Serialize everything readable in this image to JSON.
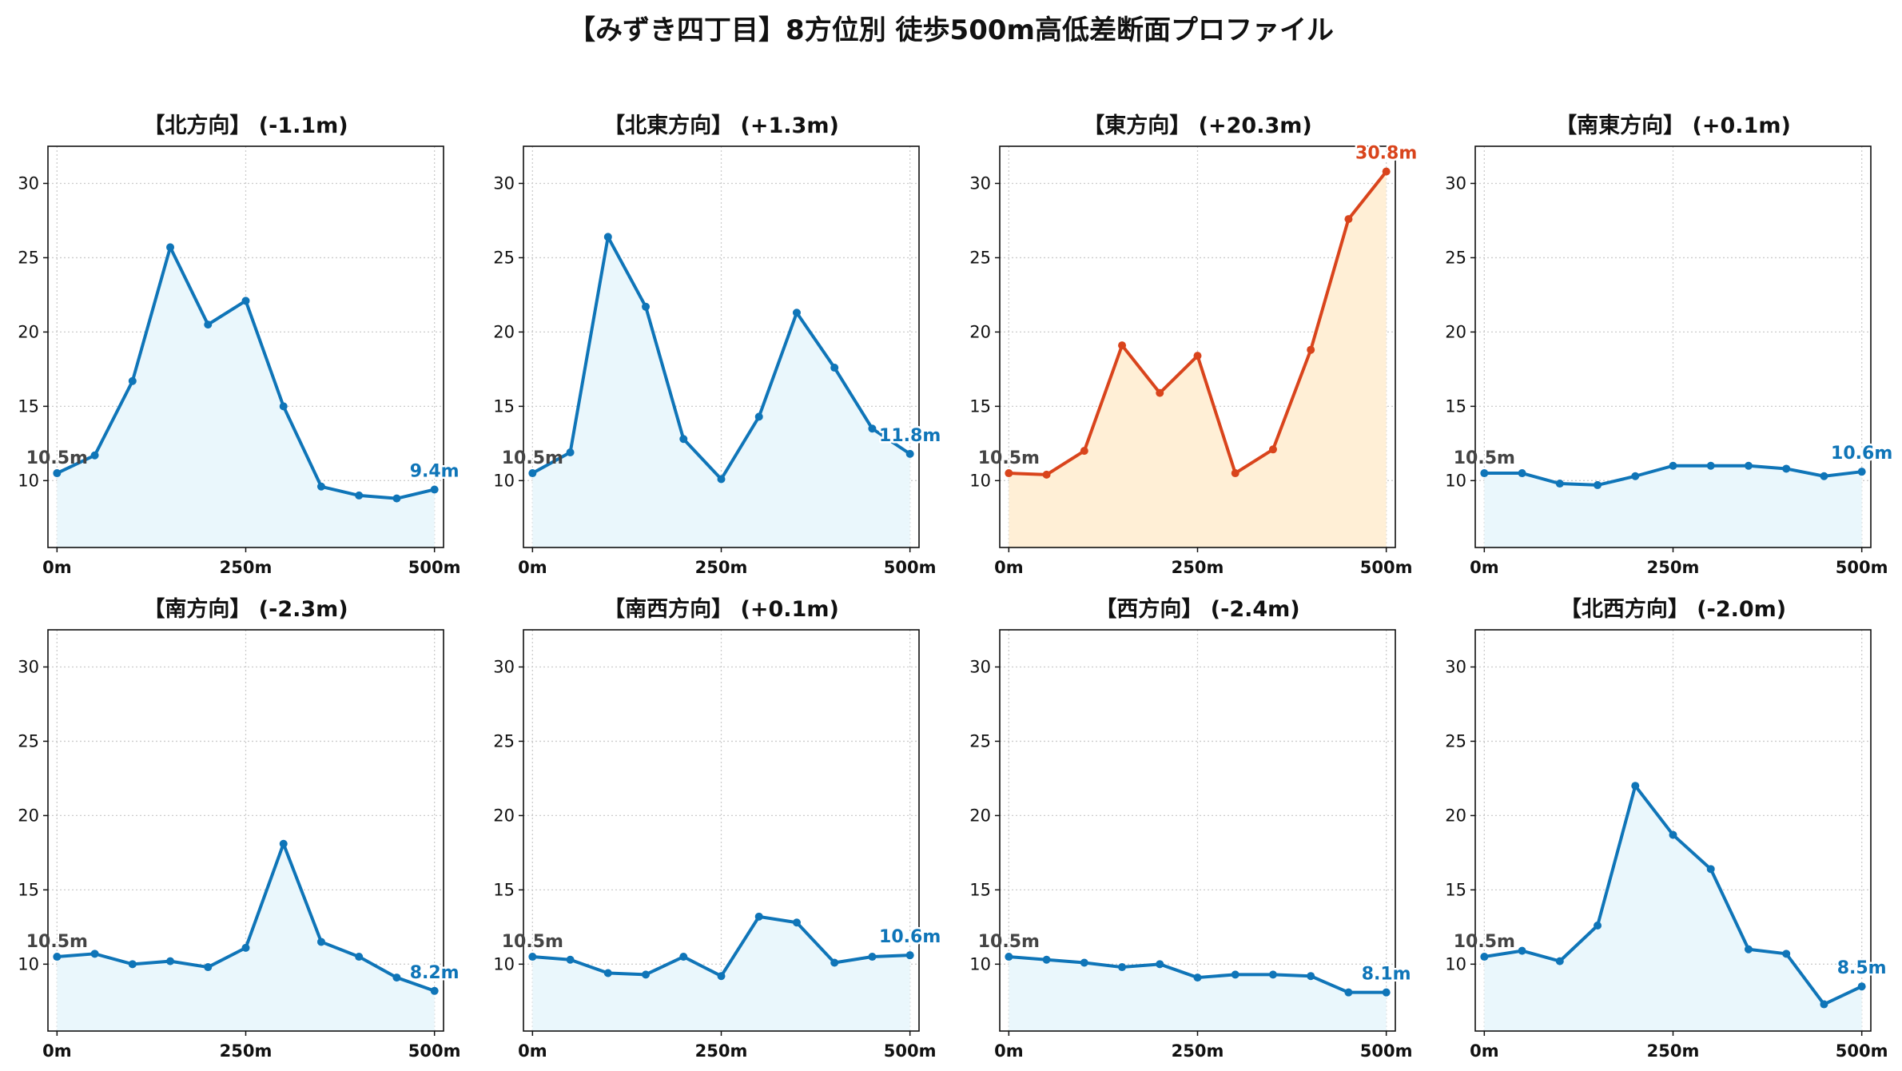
{
  "figure_title": "【みずき四丁目】8方位別 徒歩500m高低差断面プロファイル",
  "colors": {
    "normal_line": "#0f75b8",
    "normal_fill": "#eaf7fc",
    "highlight_line": "#d9441c",
    "highlight_fill": "#ffefd6",
    "start_label": "#444444",
    "grid": "#cccccc"
  },
  "chart_data": [
    {
      "type": "area",
      "title": "【北方向】 (-1.1m)",
      "highlight": false,
      "x": [
        0,
        50,
        100,
        150,
        200,
        250,
        300,
        350,
        400,
        450,
        500
      ],
      "y": [
        10.5,
        11.7,
        16.7,
        25.7,
        20.5,
        22.1,
        15.0,
        9.6,
        9.0,
        8.8,
        9.4
      ],
      "start_label": "10.5m",
      "end_label": "9.4m",
      "xticks": [
        "0m",
        "250m",
        "500m"
      ],
      "yticks": [
        10,
        15,
        20,
        25,
        30
      ],
      "ylim": [
        5.5,
        32.5
      ],
      "xlim": [
        -12,
        512
      ],
      "grid": true
    },
    {
      "type": "area",
      "title": "【北東方向】 (+1.3m)",
      "highlight": false,
      "x": [
        0,
        50,
        100,
        150,
        200,
        250,
        300,
        350,
        400,
        450,
        500
      ],
      "y": [
        10.5,
        11.9,
        26.4,
        21.7,
        12.8,
        10.1,
        14.3,
        21.3,
        17.6,
        13.5,
        11.8
      ],
      "start_label": "10.5m",
      "end_label": "11.8m",
      "xticks": [
        "0m",
        "250m",
        "500m"
      ],
      "yticks": [
        10,
        15,
        20,
        25,
        30
      ],
      "ylim": [
        5.5,
        32.5
      ],
      "xlim": [
        -12,
        512
      ],
      "grid": true
    },
    {
      "type": "area",
      "title": "【東方向】 (+20.3m)",
      "highlight": true,
      "x": [
        0,
        50,
        100,
        150,
        200,
        250,
        300,
        350,
        400,
        450,
        500
      ],
      "y": [
        10.5,
        10.4,
        12.0,
        19.1,
        15.9,
        18.4,
        10.5,
        12.1,
        18.8,
        27.6,
        30.8
      ],
      "start_label": "10.5m",
      "end_label": "30.8m",
      "xticks": [
        "0m",
        "250m",
        "500m"
      ],
      "yticks": [
        10,
        15,
        20,
        25,
        30
      ],
      "ylim": [
        5.5,
        32.5
      ],
      "xlim": [
        -12,
        512
      ],
      "grid": true
    },
    {
      "type": "area",
      "title": "【南東方向】 (+0.1m)",
      "highlight": false,
      "x": [
        0,
        50,
        100,
        150,
        200,
        250,
        300,
        350,
        400,
        450,
        500
      ],
      "y": [
        10.5,
        10.5,
        9.8,
        9.7,
        10.3,
        11.0,
        11.0,
        11.0,
        10.8,
        10.3,
        10.6
      ],
      "start_label": "10.5m",
      "end_label": "10.6m",
      "xticks": [
        "0m",
        "250m",
        "500m"
      ],
      "yticks": [
        10,
        15,
        20,
        25,
        30
      ],
      "ylim": [
        5.5,
        32.5
      ],
      "xlim": [
        -12,
        512
      ],
      "grid": true
    },
    {
      "type": "area",
      "title": "【南方向】 (-2.3m)",
      "highlight": false,
      "x": [
        0,
        50,
        100,
        150,
        200,
        250,
        300,
        350,
        400,
        450,
        500
      ],
      "y": [
        10.5,
        10.7,
        10.0,
        10.2,
        9.8,
        11.1,
        18.1,
        11.5,
        10.5,
        9.1,
        8.2
      ],
      "start_label": "10.5m",
      "end_label": "8.2m",
      "xticks": [
        "0m",
        "250m",
        "500m"
      ],
      "yticks": [
        10,
        15,
        20,
        25,
        30
      ],
      "ylim": [
        5.5,
        32.5
      ],
      "xlim": [
        -12,
        512
      ],
      "grid": true
    },
    {
      "type": "area",
      "title": "【南西方向】 (+0.1m)",
      "highlight": false,
      "x": [
        0,
        50,
        100,
        150,
        200,
        250,
        300,
        350,
        400,
        450,
        500
      ],
      "y": [
        10.5,
        10.3,
        9.4,
        9.3,
        10.5,
        9.2,
        13.2,
        12.8,
        10.1,
        10.5,
        10.6
      ],
      "start_label": "10.5m",
      "end_label": "10.6m",
      "xticks": [
        "0m",
        "250m",
        "500m"
      ],
      "yticks": [
        10,
        15,
        20,
        25,
        30
      ],
      "ylim": [
        5.5,
        32.5
      ],
      "xlim": [
        -12,
        512
      ],
      "grid": true
    },
    {
      "type": "area",
      "title": "【西方向】 (-2.4m)",
      "highlight": false,
      "x": [
        0,
        50,
        100,
        150,
        200,
        250,
        300,
        350,
        400,
        450,
        500
      ],
      "y": [
        10.5,
        10.3,
        10.1,
        9.8,
        10.0,
        9.1,
        9.3,
        9.3,
        9.2,
        8.1,
        8.1
      ],
      "start_label": "10.5m",
      "end_label": "8.1m",
      "xticks": [
        "0m",
        "250m",
        "500m"
      ],
      "yticks": [
        10,
        15,
        20,
        25,
        30
      ],
      "ylim": [
        5.5,
        32.5
      ],
      "xlim": [
        -12,
        512
      ],
      "grid": true
    },
    {
      "type": "area",
      "title": "【北西方向】 (-2.0m)",
      "highlight": false,
      "x": [
        0,
        50,
        100,
        150,
        200,
        250,
        300,
        350,
        400,
        450,
        500
      ],
      "y": [
        10.5,
        10.9,
        10.2,
        12.6,
        22.0,
        18.7,
        16.4,
        11.0,
        10.7,
        7.3,
        8.5
      ],
      "start_label": "10.5m",
      "end_label": "8.5m",
      "xticks": [
        "0m",
        "250m",
        "500m"
      ],
      "yticks": [
        10,
        15,
        20,
        25,
        30
      ],
      "ylim": [
        5.5,
        32.5
      ],
      "xlim": [
        -12,
        512
      ],
      "grid": true
    }
  ]
}
